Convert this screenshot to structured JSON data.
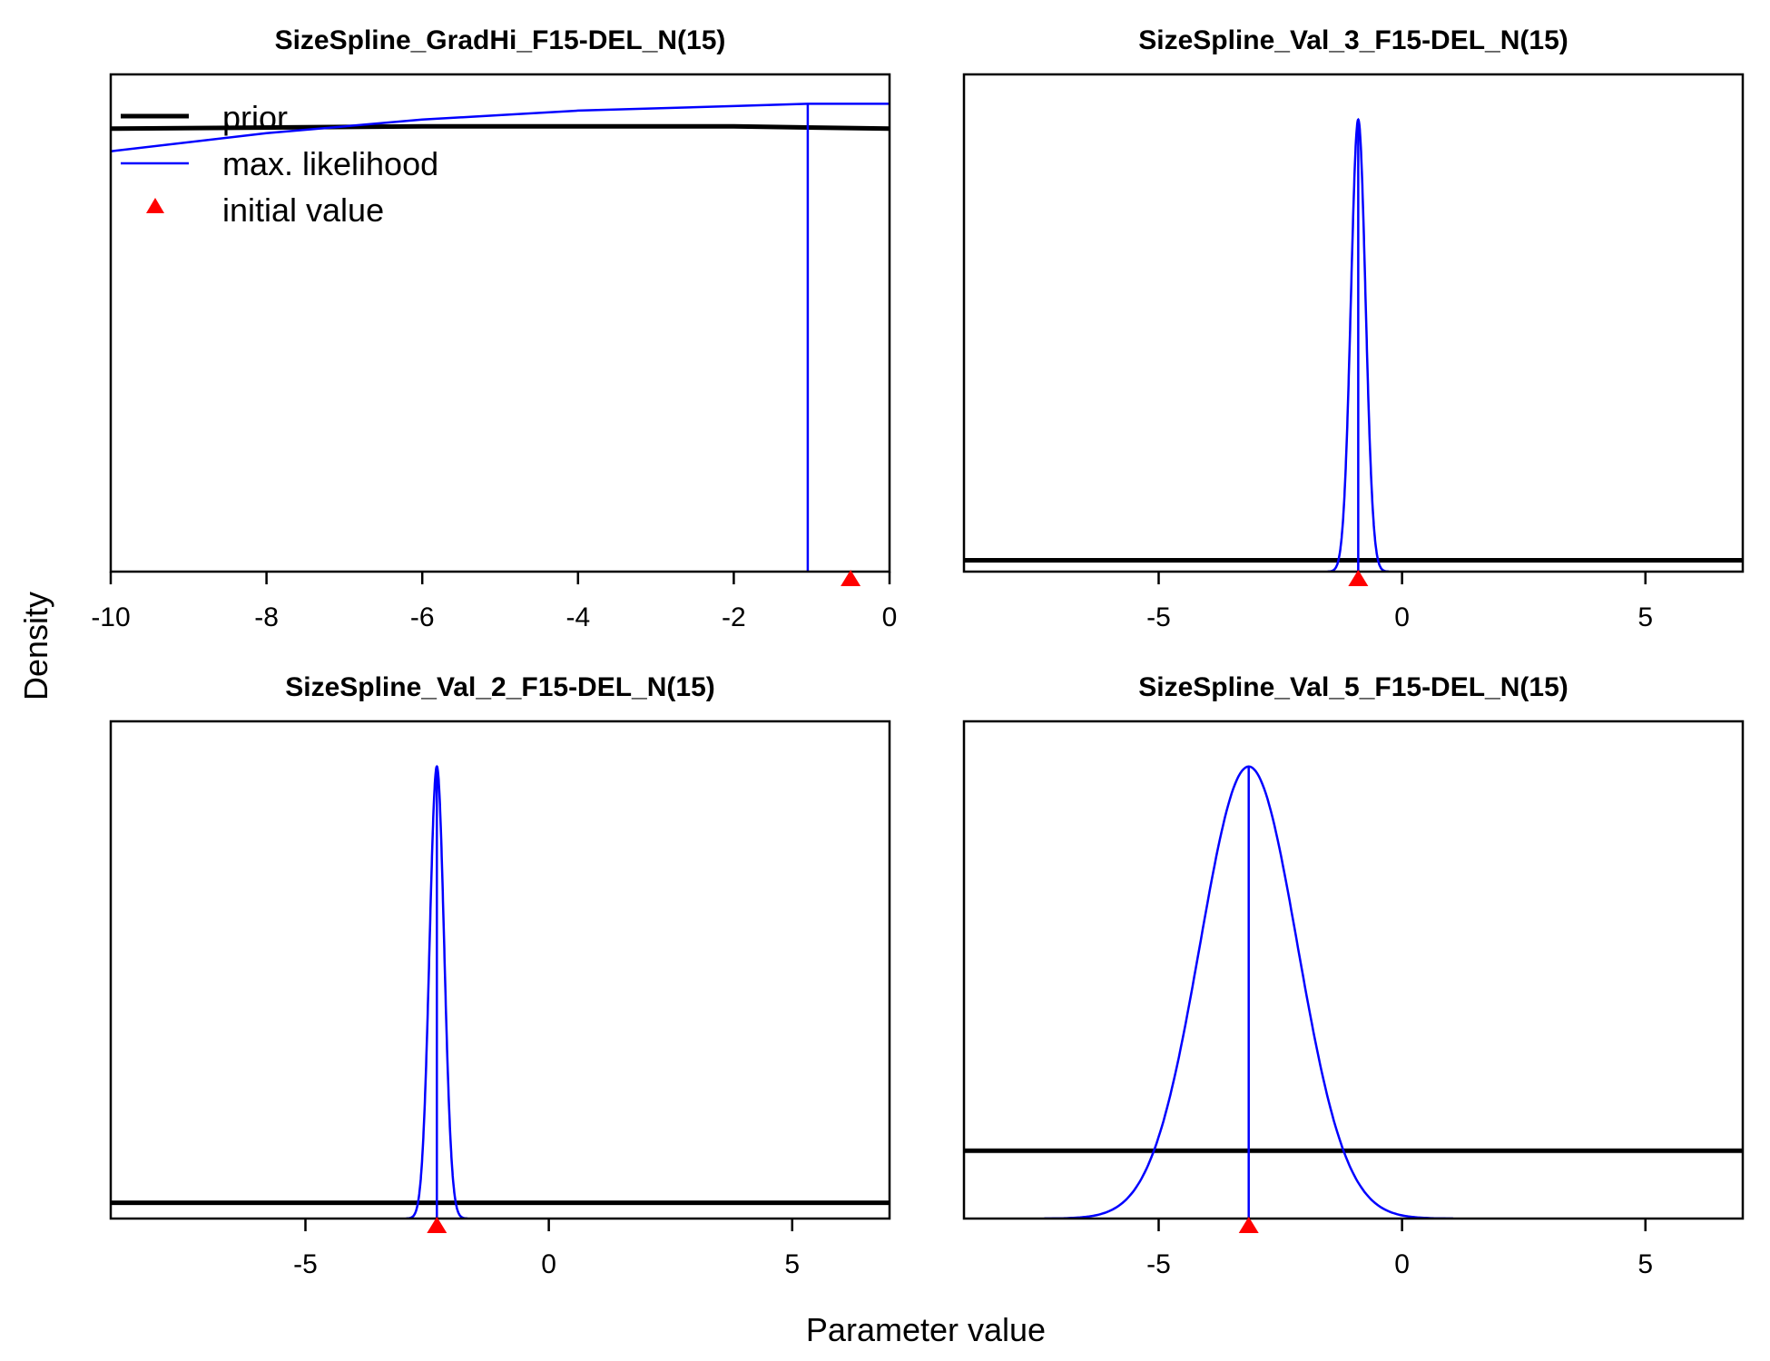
{
  "figure": {
    "xlabel": "Parameter value",
    "ylabel": "Density"
  },
  "legend": {
    "items": [
      {
        "label": "prior",
        "kind": "line",
        "color": "#000000"
      },
      {
        "label": "max. likelihood",
        "kind": "line",
        "color": "#0000ff"
      },
      {
        "label": "initial value",
        "kind": "triangle",
        "color": "#ff0000"
      }
    ]
  },
  "colors": {
    "prior": "#000000",
    "mle": "#0000ff",
    "initial": "#ff0000"
  },
  "chart_data": [
    {
      "type": "line",
      "title": "SizeSpline_GradHi_F15-DEL_N(15)",
      "xlim": [
        -10,
        0
      ],
      "xticks": [
        -10,
        -8,
        -6,
        -4,
        -2,
        0
      ],
      "xtick_labels": [
        "-10",
        "-8",
        "-6",
        "-4",
        "-2",
        "0"
      ],
      "ylim": [
        0,
        1.1
      ],
      "prior": {
        "x": [
          -10,
          -6,
          -2,
          0
        ],
        "y": [
          0.98,
          0.985,
          0.985,
          0.98
        ]
      },
      "likelihood": {
        "x": [
          -10,
          -8,
          -6,
          -4,
          -2,
          -1.05,
          0
        ],
        "y": [
          0.93,
          0.97,
          1.0,
          1.02,
          1.03,
          1.035,
          1.035
        ]
      },
      "mle": -1.05,
      "initial_value": -0.5
    },
    {
      "type": "line",
      "title": "SizeSpline_Val_3_F15-DEL_N(15)",
      "xlim": [
        -9,
        7
      ],
      "xticks": [
        -5,
        0,
        5
      ],
      "xtick_labels": [
        "-5",
        "0",
        "5"
      ],
      "ylim": [
        0,
        1.1
      ],
      "prior": {
        "x": [
          -9,
          7
        ],
        "y": [
          0.025,
          0.025
        ]
      },
      "likelihood": {
        "mean": -0.9,
        "sd": 0.15,
        "peak": 1.0
      },
      "mle": -0.9,
      "initial_value": -0.9
    },
    {
      "type": "line",
      "title": "SizeSpline_Val_2_F15-DEL_N(15)",
      "xlim": [
        -9,
        7
      ],
      "xticks": [
        -5,
        0,
        5
      ],
      "xtick_labels": [
        "-5",
        "0",
        "5"
      ],
      "ylim": [
        0,
        1.1
      ],
      "prior": {
        "x": [
          -9,
          7
        ],
        "y": [
          0.035,
          0.035
        ]
      },
      "likelihood": {
        "mean": -2.3,
        "sd": 0.15,
        "peak": 1.0
      },
      "mle": -2.3,
      "initial_value": -2.3
    },
    {
      "type": "line",
      "title": "SizeSpline_Val_5_F15-DEL_N(15)",
      "xlim": [
        -9,
        7
      ],
      "xticks": [
        -5,
        0,
        5
      ],
      "xtick_labels": [
        "-5",
        "0",
        "5"
      ],
      "ylim": [
        0,
        1.1
      ],
      "prior": {
        "x": [
          -9,
          7
        ],
        "y": [
          0.15,
          0.15
        ]
      },
      "likelihood": {
        "mean": -3.15,
        "sd": 1.0,
        "peak": 1.0
      },
      "mle": -3.15,
      "initial_value": -3.15
    }
  ]
}
